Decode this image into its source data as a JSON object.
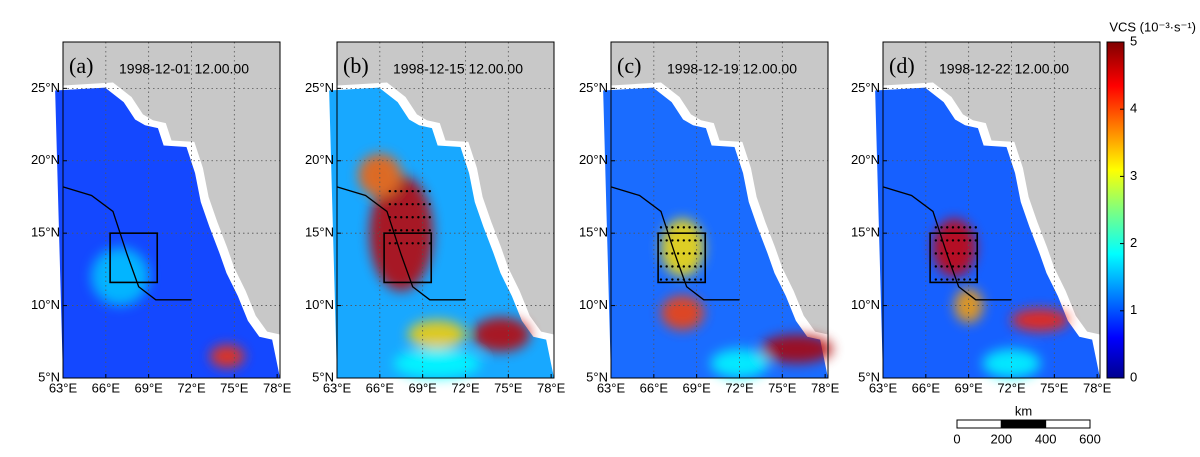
{
  "panels": [
    {
      "label": "(a)",
      "timestamp": "1998-12-01 12.00.00"
    },
    {
      "label": "(b)",
      "timestamp": "1998-12-15 12.00.00"
    },
    {
      "label": "(c)",
      "timestamp": "1998-12-19 12.00.00"
    },
    {
      "label": "(d)",
      "timestamp": "1998-12-22 12.00.00"
    }
  ],
  "lon_ticks": [
    {
      "value": 63,
      "label": "63°E"
    },
    {
      "value": 66,
      "label": "66°E"
    },
    {
      "value": 69,
      "label": "69°E"
    },
    {
      "value": 72,
      "label": "72°E"
    },
    {
      "value": 75,
      "label": "75°E"
    },
    {
      "value": 78,
      "label": "78°E"
    }
  ],
  "lat_ticks": [
    {
      "value": 5,
      "label": "5°N"
    },
    {
      "value": 10,
      "label": "10°N"
    },
    {
      "value": 15,
      "label": "15°N"
    },
    {
      "value": 20,
      "label": "20°N"
    },
    {
      "value": 25,
      "label": "25°N"
    }
  ],
  "colorbar": {
    "title": "VCS (10⁻³·s⁻¹)",
    "ticks": [
      0,
      1,
      2,
      3,
      4,
      5
    ]
  },
  "scale_bar": {
    "unit": "km",
    "ticks": [
      0,
      200,
      400,
      600
    ]
  }
}
